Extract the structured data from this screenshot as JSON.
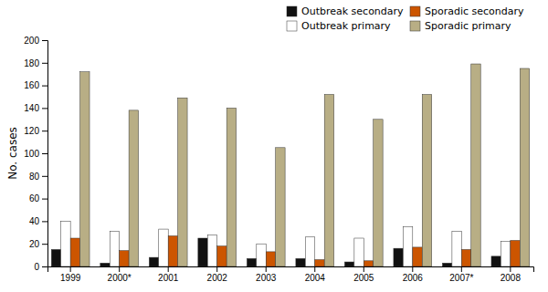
{
  "chart_data": {
    "type": "bar",
    "ylabel": "No. cases",
    "categories": [
      "1999",
      "2000*",
      "2001",
      "2002",
      "2003",
      "2004",
      "2005",
      "2006",
      "2007*",
      "2008"
    ],
    "series": [
      {
        "name": "Outbreak secondary",
        "color": "#111111",
        "values": [
          15,
          3,
          8,
          25,
          7,
          7,
          4,
          16,
          3,
          9
        ]
      },
      {
        "name": "Outbreak primary",
        "color": "#ffffff",
        "values": [
          40,
          31,
          33,
          28,
          20,
          26,
          25,
          35,
          31,
          22
        ]
      },
      {
        "name": "Sporadic secondary",
        "color": "#cc5500",
        "values": [
          25,
          14,
          27,
          18,
          13,
          6,
          5,
          17,
          15,
          23
        ]
      },
      {
        "name": "Sporadic primary",
        "color": "#b8ae85",
        "values": [
          172,
          138,
          149,
          140,
          105,
          152,
          130,
          152,
          179,
          175
        ]
      }
    ],
    "ylim": [
      0,
      200
    ],
    "yticks": [
      0,
      20,
      40,
      60,
      80,
      100,
      120,
      140,
      160,
      180,
      200
    ],
    "legend": "upper right"
  }
}
